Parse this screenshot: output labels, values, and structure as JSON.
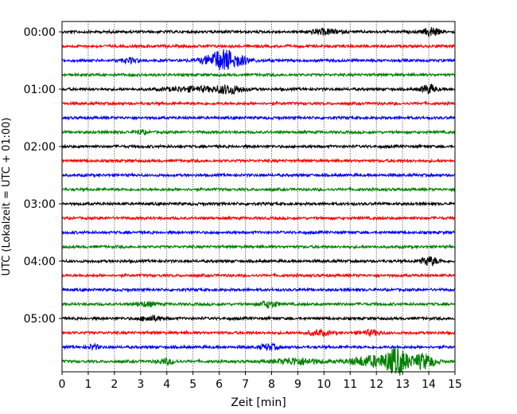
{
  "chart_data": {
    "type": "line",
    "subtype": "helicorder",
    "xlabel": "Zeit  [min]",
    "ylabel": "UTC (Lokalzeit = UTC + 01:00)",
    "xlim": [
      0,
      15
    ],
    "xticks": [
      "0",
      "1",
      "2",
      "3",
      "4",
      "5",
      "6",
      "7",
      "8",
      "9",
      "10",
      "11",
      "12",
      "13",
      "14",
      "15"
    ],
    "yticks": [
      "00:00",
      "01:00",
      "02:00",
      "03:00",
      "04:00",
      "05:00"
    ],
    "minutes_per_line": 15,
    "line_count": 24,
    "grid": "vertical dotted",
    "colors": [
      "#000000",
      "#ff0000",
      "#0000ff",
      "#008000"
    ],
    "base_noise": 1.0,
    "events": [
      {
        "line": 0,
        "minute": 10.0,
        "amplitude": 2.0,
        "duration": 0.8
      },
      {
        "line": 0,
        "minute": 14.1,
        "amplitude": 3.5,
        "duration": 0.4
      },
      {
        "line": 2,
        "minute": 2.6,
        "amplitude": 1.6,
        "duration": 0.5
      },
      {
        "line": 2,
        "minute": 6.2,
        "amplitude": 8.0,
        "duration": 1.0
      },
      {
        "line": 4,
        "minute": 5.0,
        "amplitude": 1.6,
        "duration": 1.5
      },
      {
        "line": 4,
        "minute": 6.4,
        "amplitude": 3.0,
        "duration": 0.8
      },
      {
        "line": 4,
        "minute": 14.0,
        "amplitude": 3.5,
        "duration": 0.4
      },
      {
        "line": 7,
        "minute": 3.0,
        "amplitude": 1.5,
        "duration": 0.3
      },
      {
        "line": 16,
        "minute": 14.0,
        "amplitude": 3.2,
        "duration": 0.5
      },
      {
        "line": 19,
        "minute": 3.2,
        "amplitude": 1.6,
        "duration": 0.6
      },
      {
        "line": 19,
        "minute": 7.9,
        "amplitude": 2.5,
        "duration": 0.5
      },
      {
        "line": 20,
        "minute": 3.4,
        "amplitude": 2.0,
        "duration": 0.6
      },
      {
        "line": 21,
        "minute": 9.8,
        "amplitude": 1.8,
        "duration": 0.6
      },
      {
        "line": 21,
        "minute": 11.8,
        "amplitude": 1.8,
        "duration": 0.6
      },
      {
        "line": 22,
        "minute": 1.2,
        "amplitude": 1.8,
        "duration": 0.3
      },
      {
        "line": 22,
        "minute": 7.9,
        "amplitude": 2.2,
        "duration": 0.5
      },
      {
        "line": 23,
        "minute": 4.0,
        "amplitude": 2.0,
        "duration": 0.5
      },
      {
        "line": 23,
        "minute": 9.0,
        "amplitude": 2.5,
        "duration": 1.2
      },
      {
        "line": 23,
        "minute": 11.8,
        "amplitude": 4.0,
        "duration": 1.2
      },
      {
        "line": 23,
        "minute": 12.8,
        "amplitude": 10.0,
        "duration": 0.6
      },
      {
        "line": 23,
        "minute": 13.8,
        "amplitude": 6.0,
        "duration": 0.6
      }
    ]
  }
}
